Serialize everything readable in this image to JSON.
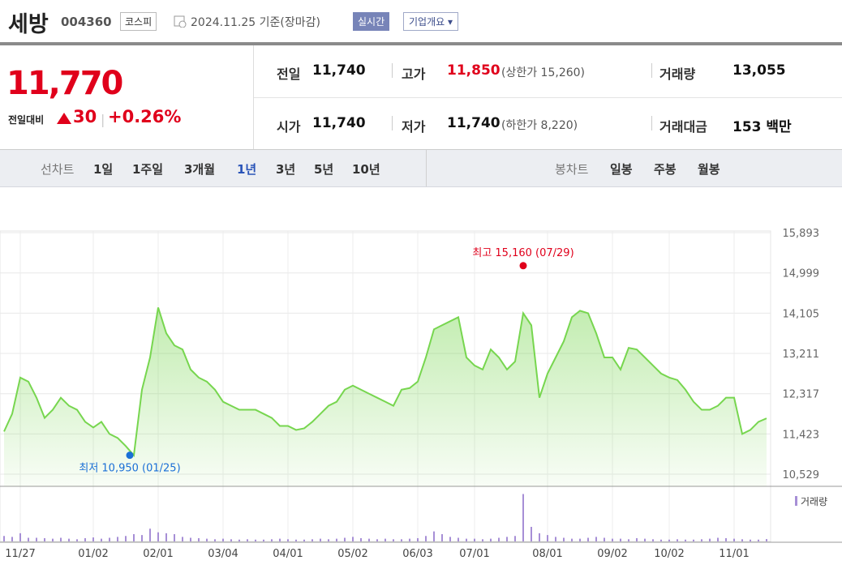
{
  "header": {
    "name": "세방",
    "code": "004360",
    "market": "코스피",
    "date": "2024.11.25 기준(장마감)",
    "realtime": "실시간",
    "company": "기업개요"
  },
  "quote": {
    "price": "11,770",
    "change_label": "전일대비",
    "change": "30",
    "change_rate": "+0.26%",
    "rows": [
      [
        [
          "전일",
          "11,740"
        ],
        [
          "고가",
          "11,850",
          "(상한가 15,260)"
        ],
        [
          "거래량",
          "13,055"
        ]
      ],
      [
        [
          "시가",
          "11,740"
        ],
        [
          "저가",
          "11,740",
          "(하한가 8,220)"
        ],
        [
          "거래대금",
          "153 백만"
        ]
      ]
    ]
  },
  "tabs": {
    "line_label": "선차트",
    "line": [
      "1일",
      "1주일",
      "3개월",
      "1년",
      "3년",
      "5년",
      "10년"
    ],
    "candle_label": "봉차트",
    "candle": [
      "일봉",
      "주봉",
      "월봉"
    ]
  },
  "chart": {
    "type": "line",
    "color": "#77d64f",
    "categories": [
      null,
      null,
      "11/27",
      null,
      null,
      null,
      null,
      null,
      null,
      null,
      null,
      "01/02",
      null,
      null,
      null,
      null,
      null,
      null,
      null,
      "02/01",
      null,
      null,
      null,
      null,
      null,
      null,
      null,
      "03/04",
      null,
      null,
      null,
      null,
      null,
      null,
      null,
      "04/01",
      null,
      null,
      null,
      null,
      null,
      null,
      null,
      "05/02",
      null,
      null,
      null,
      null,
      null,
      null,
      null,
      "06/03",
      null,
      null,
      null,
      null,
      null,
      null,
      "07/01",
      null,
      null,
      null,
      null,
      null,
      null,
      null,
      null,
      "08/01",
      null,
      null,
      null,
      null,
      null,
      null,
      null,
      "09/02",
      null,
      null,
      null,
      null,
      null,
      null,
      "10/02",
      null,
      null,
      null,
      null,
      null,
      null,
      null,
      "11/01",
      null,
      null,
      null,
      null
    ],
    "values": [
      11477,
      11870,
      12675,
      12585,
      12228,
      11780,
      11960,
      12228,
      12049,
      11960,
      11692,
      11566,
      11692,
      11423,
      11334,
      11155,
      10950,
      12406,
      13122,
      14230,
      13658,
      13390,
      13300,
      12854,
      12675,
      12585,
      12406,
      12138,
      12049,
      11960,
      11960,
      11960,
      11870,
      11780,
      11602,
      11602,
      11512,
      11548,
      11692,
      11870,
      12049,
      12138,
      12406,
      12496,
      12406,
      12317,
      12228,
      12138,
      12049,
      12406,
      12442,
      12585,
      13122,
      13747,
      13837,
      13926,
      14016,
      13122,
      12943,
      12854,
      13300,
      13122,
      12854,
      13032,
      14105,
      13837,
      12228,
      12764,
      13122,
      13480,
      14016,
      14159,
      14105,
      13658,
      13122,
      13122,
      12854,
      13336,
      13300,
      13122,
      12943,
      12764,
      12675,
      12621,
      12406,
      12138,
      11960,
      11960,
      12049,
      12228,
      12228,
      11423,
      11512,
      11692,
      11770
    ],
    "ylim": [
      10260,
      15930
    ],
    "yticks": [
      {
        "value": 10529,
        "label": "10,529"
      },
      {
        "value": 11423,
        "label": "11,423"
      },
      {
        "value": 12317,
        "label": "12,317"
      },
      {
        "value": 13211,
        "label": "13,211"
      },
      {
        "value": 14105,
        "label": "14,105"
      },
      {
        "value": 14999,
        "label": "14,999"
      },
      {
        "value": 15893,
        "label": "15,893"
      }
    ],
    "grid": true,
    "annotations": [
      {
        "text": "최고 15,160 (07/29)",
        "value": 15160,
        "color": "#e0001b"
      },
      {
        "text": "최저 10,950 (01/25)",
        "value": 10950,
        "color": "#1a6fd6"
      }
    ],
    "volume": {
      "name": "거래량",
      "color": "#a78fd6",
      "ylim": [
        0,
        280000
      ],
      "values": [
        30000,
        25000,
        45000,
        20000,
        20000,
        18000,
        15000,
        20000,
        15000,
        12000,
        18000,
        22000,
        15000,
        20000,
        25000,
        30000,
        40000,
        35000,
        70000,
        50000,
        45000,
        40000,
        25000,
        20000,
        18000,
        15000,
        12000,
        15000,
        12000,
        10000,
        12000,
        10000,
        10000,
        12000,
        15000,
        12000,
        10000,
        10000,
        12000,
        15000,
        12000,
        15000,
        20000,
        25000,
        18000,
        15000,
        12000,
        15000,
        12000,
        12000,
        15000,
        18000,
        30000,
        55000,
        40000,
        25000,
        20000,
        15000,
        15000,
        12000,
        15000,
        20000,
        25000,
        30000,
        260000,
        80000,
        45000,
        35000,
        25000,
        20000,
        15000,
        15000,
        20000,
        25000,
        20000,
        15000,
        15000,
        12000,
        18000,
        15000,
        12000,
        10000,
        10000,
        12000,
        10000,
        10000,
        12000,
        15000,
        20000,
        18000,
        15000,
        12000,
        10000,
        10000,
        13055
      ]
    }
  }
}
